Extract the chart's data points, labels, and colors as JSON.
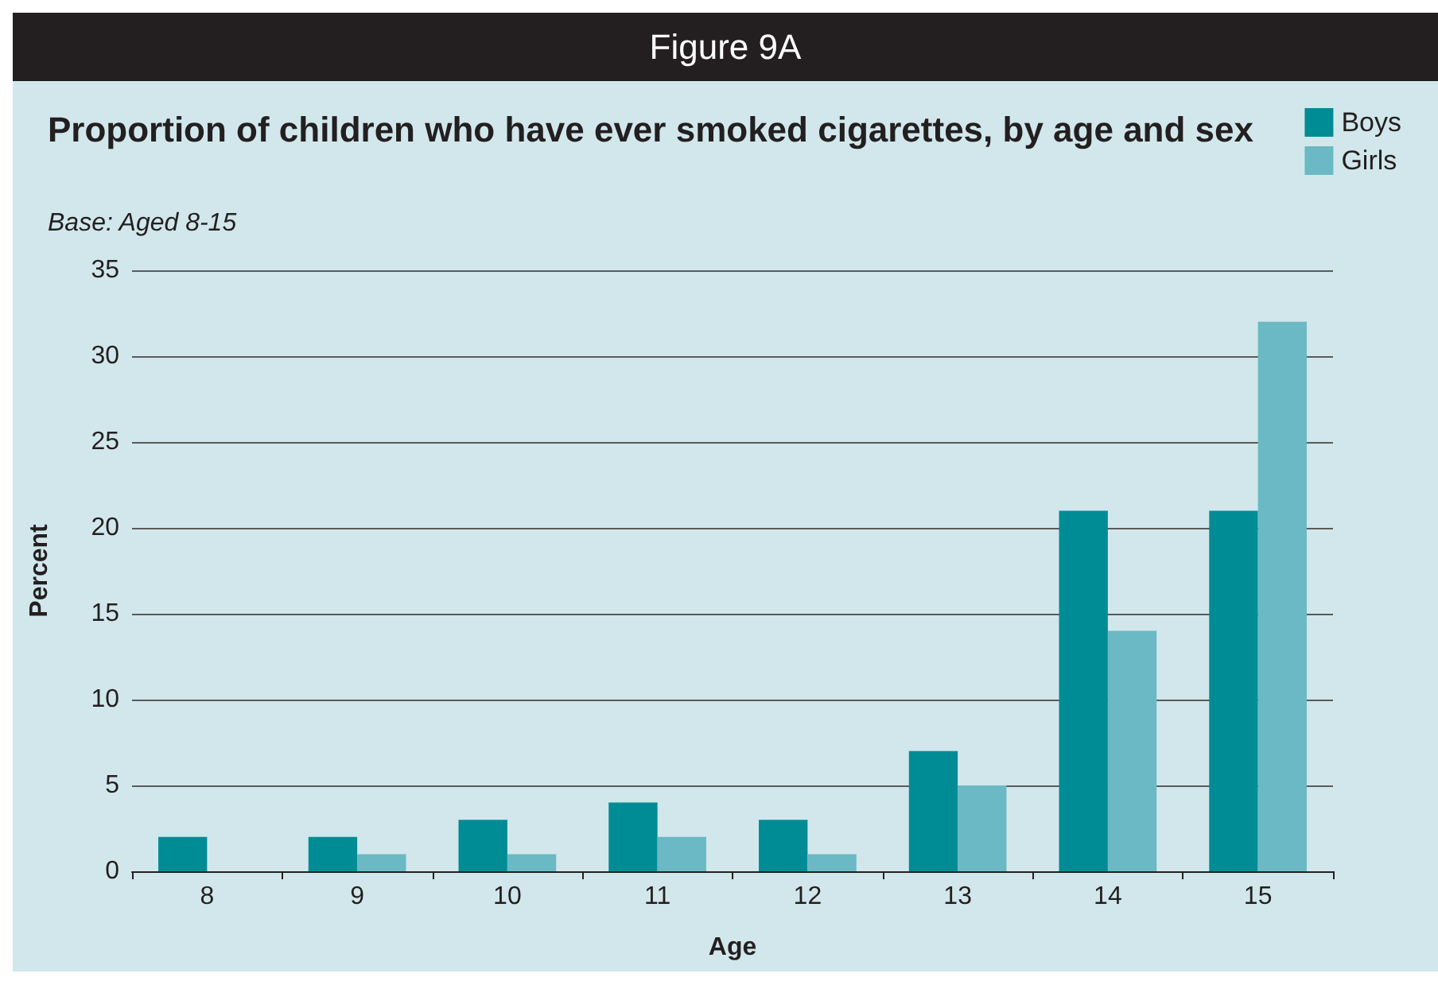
{
  "chart_data": {
    "type": "bar",
    "annotations": [
      "Figure 9A"
    ],
    "title": "Proportion of children who have ever smoked cigarettes, by age and sex",
    "subtitle": "Base: Aged 8-15",
    "xlabel": "Age",
    "ylabel": "Percent",
    "categories": [
      "8",
      "9",
      "10",
      "11",
      "12",
      "13",
      "14",
      "15"
    ],
    "series": [
      {
        "name": "Boys",
        "color": "#008c95",
        "values": [
          2,
          2,
          3,
          4,
          3,
          7,
          21,
          21
        ]
      },
      {
        "name": "Girls",
        "color": "#6bb9c4",
        "values": [
          0,
          1,
          1,
          2,
          1,
          5,
          14,
          32
        ]
      }
    ],
    "ylim": [
      0,
      35
    ],
    "yticks": [
      0,
      5,
      10,
      15,
      20,
      25,
      30,
      35
    ],
    "grid": "y",
    "legend": "top right"
  }
}
